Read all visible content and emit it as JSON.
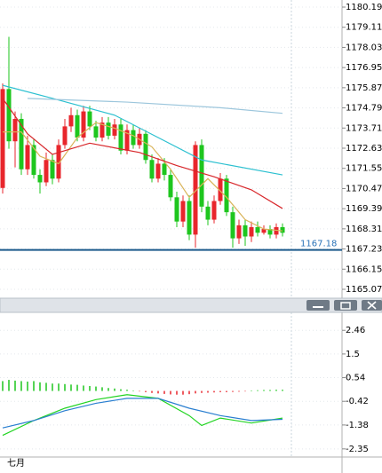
{
  "chart_data": [
    {
      "type": "candlestick",
      "x_label": "七月",
      "up_color": "#e8262c",
      "down_color": "#1ec61e",
      "open": [
        1170.5,
        1175.8,
        1173,
        1174.2,
        1171.5,
        1172.8,
        1171.2,
        1170.8,
        1172,
        1171,
        1172.8,
        1173.8,
        1174.4,
        1173.2,
        1174.6,
        1173.8,
        1173.2,
        1174,
        1173.3,
        1173.9,
        1172.5,
        1173.6,
        1172.8,
        1173.4,
        1172,
        1171,
        1171.8,
        1171.2,
        1170,
        1168.7,
        1169.8,
        1168,
        1172.8,
        1169.5,
        1168.8,
        1169.8,
        1171,
        1169.2,
        1167.8,
        1168.5,
        1167.9,
        1168.4,
        1168.1,
        1168.3,
        1168,
        1168.4
      ],
      "close": [
        1175.8,
        1173,
        1174.2,
        1171.5,
        1172.8,
        1171.2,
        1170.8,
        1172,
        1171,
        1172.8,
        1173.8,
        1174.4,
        1173.2,
        1174.6,
        1173.8,
        1173.2,
        1174,
        1173.3,
        1173.9,
        1172.5,
        1173.6,
        1172.8,
        1173.4,
        1172,
        1171,
        1171.8,
        1171.2,
        1170,
        1168.7,
        1169.8,
        1168,
        1172.8,
        1169.5,
        1168.8,
        1169.8,
        1171,
        1169.2,
        1167.8,
        1168.5,
        1167.9,
        1168.4,
        1168.1,
        1168.3,
        1168,
        1168.4,
        1168.1
      ],
      "high": [
        1176.1,
        1178.6,
        1174.6,
        1174.5,
        1173.3,
        1173.1,
        1171.5,
        1172.4,
        1172.3,
        1173.1,
        1174.2,
        1174.8,
        1174.7,
        1174.9,
        1174.9,
        1174.1,
        1174.3,
        1174.3,
        1174.2,
        1174.2,
        1173.9,
        1173.9,
        1173.7,
        1173.6,
        1172.3,
        1172.1,
        1172.1,
        1171.5,
        1170.3,
        1170.1,
        1170.1,
        1173,
        1173.1,
        1169.8,
        1170.1,
        1171.3,
        1171.2,
        1169.5,
        1168.8,
        1168.8,
        1168.7,
        1168.7,
        1168.5,
        1168.5,
        1168.6,
        1168.6
      ],
      "low": [
        1170.2,
        1172.6,
        1171.6,
        1171.2,
        1171.2,
        1171,
        1170.2,
        1170.6,
        1170.7,
        1170.8,
        1172.6,
        1173.5,
        1173,
        1173,
        1173.6,
        1173,
        1173,
        1173.1,
        1173.1,
        1172.3,
        1172.3,
        1172.6,
        1172.6,
        1171.8,
        1170.8,
        1170.8,
        1170.9,
        1169.8,
        1168.4,
        1168.4,
        1167.7,
        1167.3,
        1169.2,
        1168.5,
        1168.6,
        1169.6,
        1169,
        1167.3,
        1167.5,
        1167.4,
        1167.6,
        1167.9,
        1168,
        1167.8,
        1167.8,
        1167.9
      ],
      "lines": [
        {
          "color": "#d9b45a",
          "x": [
            0,
            3,
            6,
            9,
            12,
            15,
            18,
            21,
            24,
            27,
            30,
            33,
            36,
            39,
            42,
            45
          ],
          "values": [
            1173.5,
            1173.5,
            1172.2,
            1171.8,
            1173.2,
            1174,
            1173.7,
            1173.3,
            1172.7,
            1171.5,
            1170,
            1171,
            1170,
            1168.8,
            1168.3,
            1168.2
          ]
        },
        {
          "color": "#d8262a",
          "x": [
            0,
            4,
            8,
            14,
            22,
            28,
            34,
            40,
            45
          ],
          "values": [
            1175.3,
            1173.4,
            1172.3,
            1172.9,
            1172.4,
            1171.7,
            1171.1,
            1170.4,
            1169.4
          ]
        },
        {
          "color": "#2cc0d0",
          "x": [
            0,
            8,
            18,
            25,
            32,
            45
          ],
          "values": [
            1176,
            1175.3,
            1174.4,
            1173.2,
            1172,
            1171.2
          ]
        },
        {
          "color": "#9cc6dc",
          "x": [
            4,
            20,
            35,
            45
          ],
          "values": [
            1175.3,
            1175.1,
            1174.8,
            1174.5
          ]
        }
      ],
      "last_price": 1167.18,
      "ylim": [
        1165.07,
        1180.19
      ],
      "yticks": [
        1180.19,
        1179.11,
        1178.03,
        1176.95,
        1175.87,
        1174.79,
        1173.71,
        1172.63,
        1171.55,
        1170.47,
        1169.39,
        1168.31,
        1167.23,
        1166.15,
        1165.07
      ]
    },
    {
      "type": "macd",
      "hist_up_color": "#1ec61e",
      "hist_down_color": "#e8262c",
      "hist": [
        0.4,
        0.45,
        0.42,
        0.4,
        0.38,
        0.4,
        0.35,
        0.33,
        0.3,
        0.3,
        0.28,
        0.26,
        0.25,
        0.22,
        0.2,
        0.18,
        0.15,
        0.12,
        0.1,
        0.07,
        0.05,
        0.02,
        -0.02,
        -0.05,
        -0.08,
        -0.1,
        -0.12,
        -0.14,
        -0.15,
        -0.15,
        -0.13,
        -0.1,
        -0.08,
        -0.07,
        -0.06,
        -0.05,
        -0.05,
        -0.04,
        -0.03,
        -0.02,
        0.02,
        0.03,
        0.04,
        0.04,
        0.05,
        0.05
      ],
      "lines": [
        {
          "color": "#22d422",
          "x": [
            0,
            5,
            10,
            15,
            20,
            25,
            30,
            32,
            35,
            40,
            45
          ],
          "values": [
            -1.8,
            -1.2,
            -0.7,
            -0.35,
            -0.15,
            -0.3,
            -1.0,
            -1.4,
            -1.1,
            -1.3,
            -1.1
          ]
        },
        {
          "color": "#2a7fd0",
          "x": [
            0,
            5,
            10,
            15,
            20,
            25,
            30,
            35,
            40,
            45
          ],
          "values": [
            -1.5,
            -1.2,
            -0.8,
            -0.5,
            -0.3,
            -0.3,
            -0.7,
            -1.0,
            -1.2,
            -1.15
          ]
        }
      ],
      "ylim": [
        -2.5,
        2.9
      ],
      "yticks": [
        2.46,
        1.5,
        0.54,
        -0.42,
        -1.38,
        -2.35
      ]
    }
  ]
}
